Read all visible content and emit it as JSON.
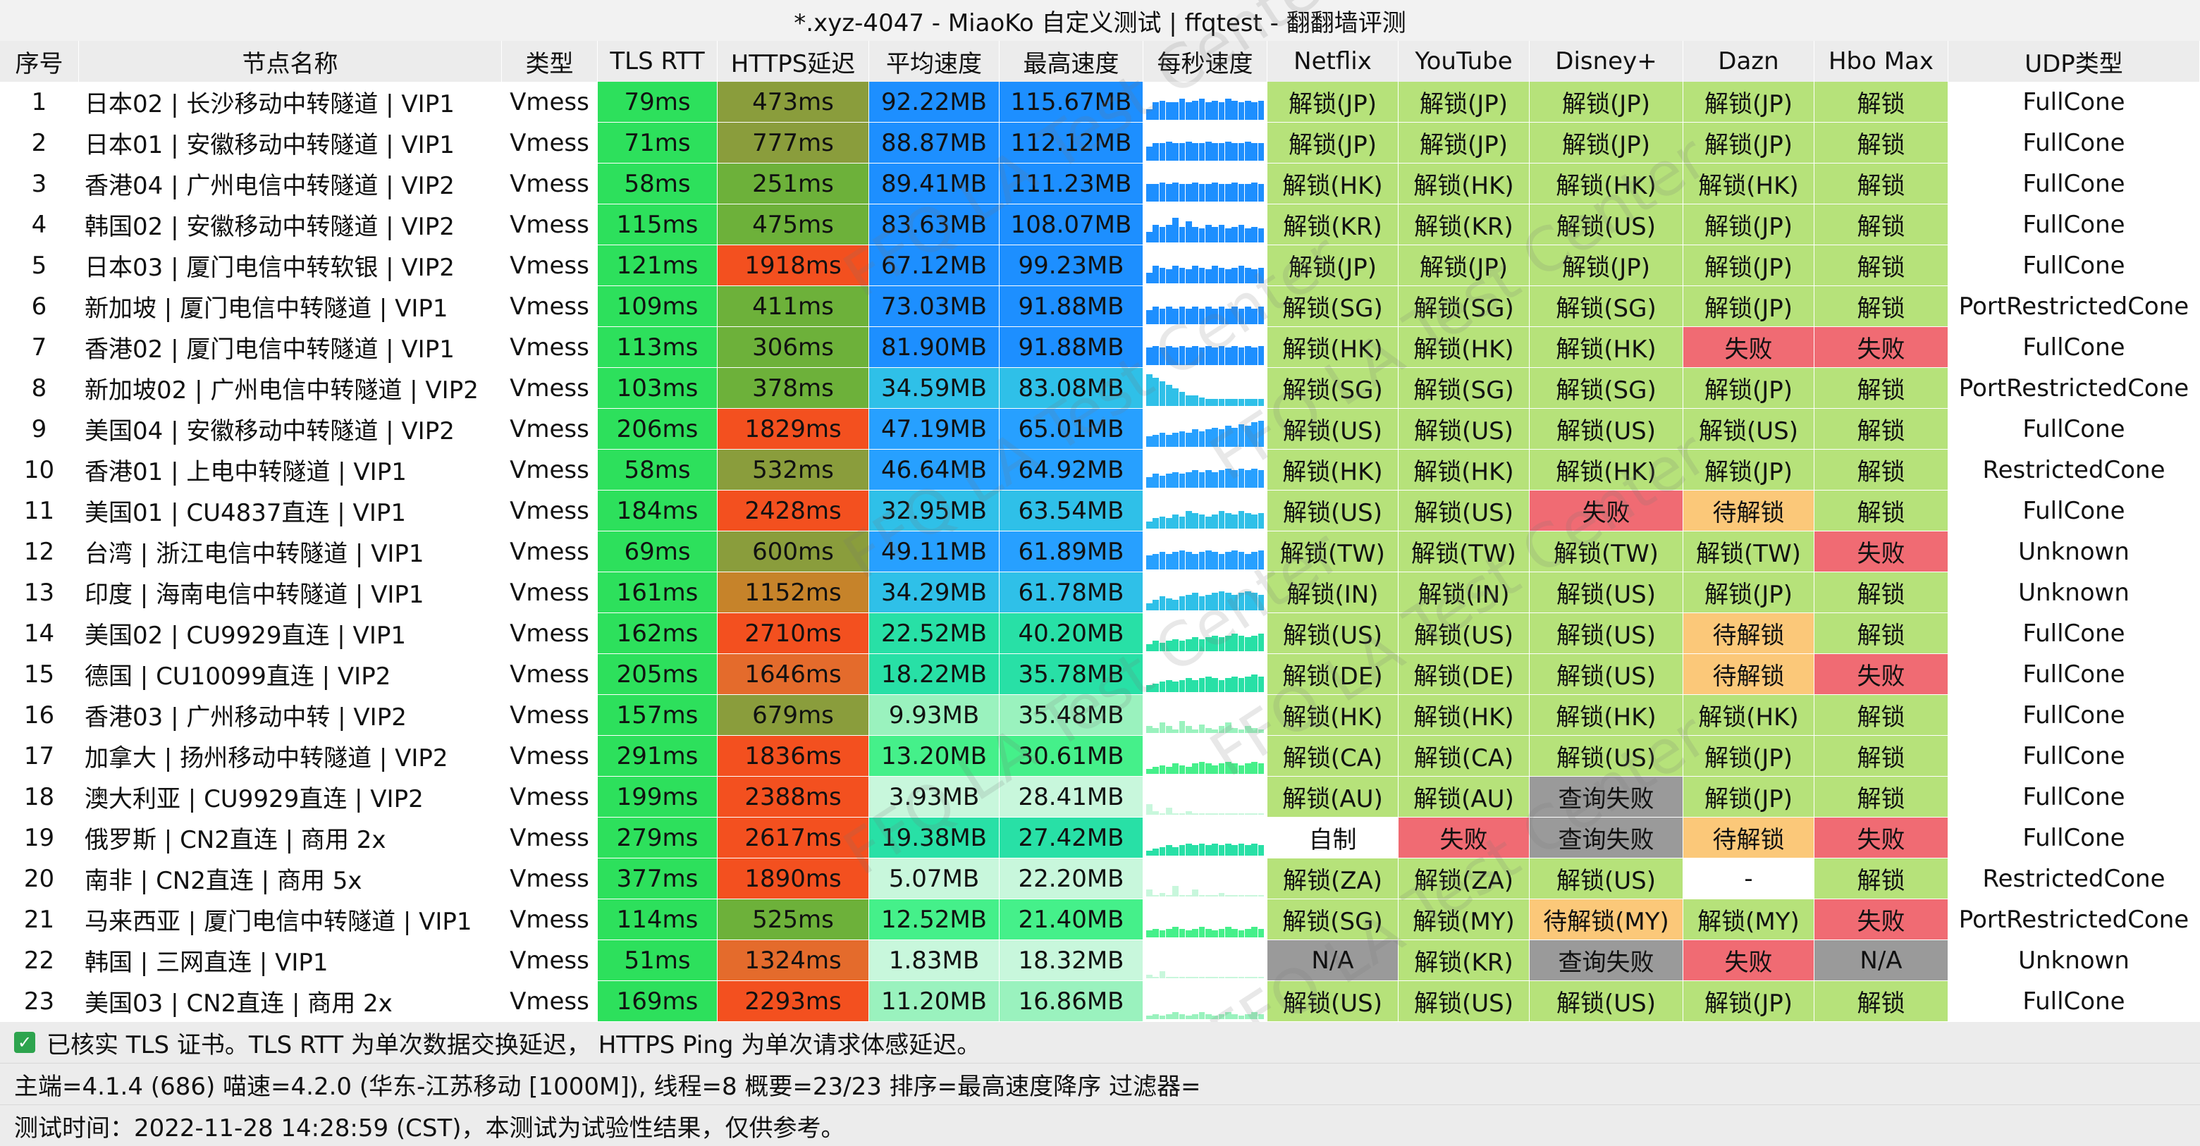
{
  "title": "*.xyz-4047 - MiaoKo 自定义测试 | ffqtest - 翻翻墙评测",
  "watermark": "FFQ LA Test Center",
  "headers": [
    "序号",
    "节点名称",
    "类型",
    "TLS RTT",
    "HTTPS延迟",
    "平均速度",
    "最高速度",
    "每秒速度",
    "Netflix",
    "YouTube",
    "Disney+",
    "Dazn",
    "Hbo Max",
    "UDP类型"
  ],
  "colors": {
    "rtt": "#2de05c",
    "ok": "#b6e27a",
    "fail": "#f06b73",
    "pending": "#fbc879",
    "query_fail": "#9a9a9a",
    "self": "#ffffff",
    "na": "#9a9a9a",
    "https_scale": [
      "#4cd964",
      "#6db13a",
      "#8a9d3c",
      "#c6832a",
      "#e46b2c",
      "#f3501f"
    ],
    "speed_scale": [
      "#1d8fff",
      "#27a0ff",
      "#2fc0e8",
      "#28e0a6",
      "#45f08a",
      "#9af2be",
      "#c8f7dc"
    ],
    "spark": "#1da2f2"
  },
  "rows": [
    {
      "idx": "1",
      "name": "日本02 | 长沙移动中转隧道 | VIP1",
      "type": "Vmess",
      "rtt": "79ms",
      "https": "473ms",
      "https_level": 2,
      "avg": "92.22MB",
      "max": "115.67MB",
      "speed_level": 0,
      "spark": [
        0.3,
        0.5,
        0.55,
        0.5,
        0.5,
        0.6,
        0.5,
        0.55,
        0.6,
        0.5,
        0.55,
        0.5,
        0.6,
        0.55,
        0.5,
        0.55,
        0.5,
        0.55
      ],
      "netflix": [
        "解锁(JP)",
        "ok"
      ],
      "youtube": [
        "解锁(JP)",
        "ok"
      ],
      "disney": [
        "解锁(JP)",
        "ok"
      ],
      "dazn": [
        "解锁(JP)",
        "ok"
      ],
      "hbo": [
        "解锁",
        "ok"
      ],
      "udp": "FullCone"
    },
    {
      "idx": "2",
      "name": "日本01 | 安徽移动中转隧道 | VIP1",
      "type": "Vmess",
      "rtt": "71ms",
      "https": "777ms",
      "https_level": 2,
      "avg": "88.87MB",
      "max": "112.12MB",
      "speed_level": 0,
      "spark": [
        0.4,
        0.5,
        0.5,
        0.55,
        0.5,
        0.5,
        0.55,
        0.5,
        0.5,
        0.55,
        0.5,
        0.5,
        0.55,
        0.5,
        0.5,
        0.55,
        0.5,
        0.5
      ],
      "netflix": [
        "解锁(JP)",
        "ok"
      ],
      "youtube": [
        "解锁(JP)",
        "ok"
      ],
      "disney": [
        "解锁(JP)",
        "ok"
      ],
      "dazn": [
        "解锁(JP)",
        "ok"
      ],
      "hbo": [
        "解锁",
        "ok"
      ],
      "udp": "FullCone"
    },
    {
      "idx": "3",
      "name": "香港04 | 广州电信中转隧道 | VIP2",
      "type": "Vmess",
      "rtt": "58ms",
      "https": "251ms",
      "https_level": 1,
      "avg": "89.41MB",
      "max": "111.23MB",
      "speed_level": 0,
      "spark": [
        0.5,
        0.5,
        0.55,
        0.5,
        0.55,
        0.5,
        0.5,
        0.55,
        0.5,
        0.5,
        0.55,
        0.5,
        0.5,
        0.55,
        0.5,
        0.5,
        0.55,
        0.5
      ],
      "netflix": [
        "解锁(HK)",
        "ok"
      ],
      "youtube": [
        "解锁(HK)",
        "ok"
      ],
      "disney": [
        "解锁(HK)",
        "ok"
      ],
      "dazn": [
        "解锁(HK)",
        "ok"
      ],
      "hbo": [
        "解锁",
        "ok"
      ],
      "udp": "FullCone"
    },
    {
      "idx": "4",
      "name": "韩国02 | 安徽移动中转隧道 | VIP2",
      "type": "Vmess",
      "rtt": "115ms",
      "https": "475ms",
      "https_level": 1,
      "avg": "83.63MB",
      "max": "108.07MB",
      "speed_level": 0,
      "spark": [
        0.3,
        0.5,
        0.45,
        0.5,
        0.7,
        0.45,
        0.6,
        0.45,
        0.4,
        0.5,
        0.45,
        0.5,
        0.4,
        0.45,
        0.5,
        0.4,
        0.45,
        0.4
      ],
      "netflix": [
        "解锁(KR)",
        "ok"
      ],
      "youtube": [
        "解锁(KR)",
        "ok"
      ],
      "disney": [
        "解锁(US)",
        "ok"
      ],
      "dazn": [
        "解锁(JP)",
        "ok"
      ],
      "hbo": [
        "解锁",
        "ok"
      ],
      "udp": "FullCone"
    },
    {
      "idx": "5",
      "name": "日本03 | 厦门电信中转软银 | VIP2",
      "type": "Vmess",
      "rtt": "121ms",
      "https": "1918ms",
      "https_level": 5,
      "avg": "67.12MB",
      "max": "99.23MB",
      "speed_level": 0,
      "spark": [
        0.3,
        0.5,
        0.45,
        0.4,
        0.5,
        0.45,
        0.4,
        0.5,
        0.45,
        0.4,
        0.5,
        0.45,
        0.4,
        0.45,
        0.5,
        0.45,
        0.4,
        0.45
      ],
      "netflix": [
        "解锁(JP)",
        "ok"
      ],
      "youtube": [
        "解锁(JP)",
        "ok"
      ],
      "disney": [
        "解锁(JP)",
        "ok"
      ],
      "dazn": [
        "解锁(JP)",
        "ok"
      ],
      "hbo": [
        "解锁",
        "ok"
      ],
      "udp": "FullCone"
    },
    {
      "idx": "6",
      "name": "新加坡 | 厦门电信中转隧道 | VIP1",
      "type": "Vmess",
      "rtt": "109ms",
      "https": "411ms",
      "https_level": 1,
      "avg": "73.03MB",
      "max": "91.88MB",
      "speed_level": 0,
      "spark": [
        0.4,
        0.5,
        0.45,
        0.5,
        0.45,
        0.5,
        0.45,
        0.5,
        0.45,
        0.5,
        0.45,
        0.5,
        0.45,
        0.5,
        0.45,
        0.5,
        0.45,
        0.5
      ],
      "netflix": [
        "解锁(SG)",
        "ok"
      ],
      "youtube": [
        "解锁(SG)",
        "ok"
      ],
      "disney": [
        "解锁(SG)",
        "ok"
      ],
      "dazn": [
        "解锁(JP)",
        "ok"
      ],
      "hbo": [
        "解锁",
        "ok"
      ],
      "udp": "PortRestrictedCone"
    },
    {
      "idx": "7",
      "name": "香港02 | 厦门电信中转隧道 | VIP1",
      "type": "Vmess",
      "rtt": "113ms",
      "https": "306ms",
      "https_level": 1,
      "avg": "81.90MB",
      "max": "91.88MB",
      "speed_level": 0,
      "spark": [
        0.5,
        0.55,
        0.5,
        0.55,
        0.5,
        0.55,
        0.5,
        0.55,
        0.5,
        0.55,
        0.5,
        0.55,
        0.5,
        0.55,
        0.5,
        0.55,
        0.5,
        0.55
      ],
      "netflix": [
        "解锁(HK)",
        "ok"
      ],
      "youtube": [
        "解锁(HK)",
        "ok"
      ],
      "disney": [
        "解锁(HK)",
        "ok"
      ],
      "dazn": [
        "失败",
        "fail"
      ],
      "hbo": [
        "失败",
        "fail"
      ],
      "udp": "FullCone"
    },
    {
      "idx": "8",
      "name": "新加坡02 | 广州电信中转隧道 | VIP2",
      "type": "Vmess",
      "rtt": "103ms",
      "https": "378ms",
      "https_level": 1,
      "avg": "34.59MB",
      "max": "83.08MB",
      "speed_level": 2,
      "spark": [
        0.9,
        0.8,
        0.7,
        0.6,
        0.5,
        0.4,
        0.3,
        0.3,
        0.25,
        0.2,
        0.2,
        0.2,
        0.2,
        0.2,
        0.2,
        0.2,
        0.2,
        0.2
      ],
      "netflix": [
        "解锁(SG)",
        "ok"
      ],
      "youtube": [
        "解锁(SG)",
        "ok"
      ],
      "disney": [
        "解锁(SG)",
        "ok"
      ],
      "dazn": [
        "解锁(JP)",
        "ok"
      ],
      "hbo": [
        "解锁",
        "ok"
      ],
      "udp": "PortRestrictedCone"
    },
    {
      "idx": "9",
      "name": "美国04 | 安徽移动中转隧道 | VIP2",
      "type": "Vmess",
      "rtt": "206ms",
      "https": "1829ms",
      "https_level": 5,
      "avg": "47.19MB",
      "max": "65.01MB",
      "speed_level": 1,
      "spark": [
        0.3,
        0.35,
        0.4,
        0.35,
        0.4,
        0.45,
        0.4,
        0.5,
        0.45,
        0.5,
        0.55,
        0.5,
        0.6,
        0.55,
        0.65,
        0.6,
        0.7,
        0.75
      ],
      "netflix": [
        "解锁(US)",
        "ok"
      ],
      "youtube": [
        "解锁(US)",
        "ok"
      ],
      "disney": [
        "解锁(US)",
        "ok"
      ],
      "dazn": [
        "解锁(US)",
        "ok"
      ],
      "hbo": [
        "解锁",
        "ok"
      ],
      "udp": "FullCone"
    },
    {
      "idx": "10",
      "name": "香港01 | 上电中转隧道 | VIP1",
      "type": "Vmess",
      "rtt": "58ms",
      "https": "532ms",
      "https_level": 2,
      "avg": "46.64MB",
      "max": "64.92MB",
      "speed_level": 1,
      "spark": [
        0.3,
        0.4,
        0.35,
        0.4,
        0.45,
        0.4,
        0.45,
        0.5,
        0.45,
        0.5,
        0.45,
        0.5,
        0.55,
        0.5,
        0.55,
        0.5,
        0.55,
        0.5
      ],
      "netflix": [
        "解锁(HK)",
        "ok"
      ],
      "youtube": [
        "解锁(HK)",
        "ok"
      ],
      "disney": [
        "解锁(HK)",
        "ok"
      ],
      "dazn": [
        "解锁(JP)",
        "ok"
      ],
      "hbo": [
        "解锁",
        "ok"
      ],
      "udp": "RestrictedCone"
    },
    {
      "idx": "11",
      "name": "美国01 | CU4837直连 | VIP1",
      "type": "Vmess",
      "rtt": "184ms",
      "https": "2428ms",
      "https_level": 5,
      "avg": "32.95MB",
      "max": "63.54MB",
      "speed_level": 2,
      "spark": [
        0.2,
        0.3,
        0.35,
        0.3,
        0.4,
        0.35,
        0.5,
        0.45,
        0.4,
        0.35,
        0.4,
        0.5,
        0.45,
        0.4,
        0.5,
        0.45,
        0.4,
        0.45
      ],
      "netflix": [
        "解锁(US)",
        "ok"
      ],
      "youtube": [
        "解锁(US)",
        "ok"
      ],
      "disney": [
        "失败",
        "fail"
      ],
      "dazn": [
        "待解锁",
        "pending"
      ],
      "hbo": [
        "解锁",
        "ok"
      ],
      "udp": "FullCone"
    },
    {
      "idx": "12",
      "name": "台湾 | 浙江电信中转隧道 | VIP1",
      "type": "Vmess",
      "rtt": "69ms",
      "https": "600ms",
      "https_level": 2,
      "avg": "49.11MB",
      "max": "61.89MB",
      "speed_level": 1,
      "spark": [
        0.4,
        0.45,
        0.5,
        0.45,
        0.5,
        0.55,
        0.5,
        0.45,
        0.5,
        0.55,
        0.5,
        0.45,
        0.5,
        0.55,
        0.5,
        0.45,
        0.5,
        0.55
      ],
      "netflix": [
        "解锁(TW)",
        "ok"
      ],
      "youtube": [
        "解锁(TW)",
        "ok"
      ],
      "disney": [
        "解锁(TW)",
        "ok"
      ],
      "dazn": [
        "解锁(TW)",
        "ok"
      ],
      "hbo": [
        "失败",
        "fail"
      ],
      "udp": "Unknown"
    },
    {
      "idx": "13",
      "name": "印度 | 海南电信中转隧道 | VIP1",
      "type": "Vmess",
      "rtt": "161ms",
      "https": "1152ms",
      "https_level": 3,
      "avg": "34.29MB",
      "max": "61.78MB",
      "speed_level": 2,
      "spark": [
        0.2,
        0.3,
        0.4,
        0.35,
        0.3,
        0.4,
        0.45,
        0.5,
        0.4,
        0.45,
        0.5,
        0.55,
        0.5,
        0.45,
        0.5,
        0.55,
        0.5,
        0.45
      ],
      "netflix": [
        "解锁(IN)",
        "ok"
      ],
      "youtube": [
        "解锁(IN)",
        "ok"
      ],
      "disney": [
        "解锁(US)",
        "ok"
      ],
      "dazn": [
        "解锁(JP)",
        "ok"
      ],
      "hbo": [
        "解锁",
        "ok"
      ],
      "udp": "Unknown"
    },
    {
      "idx": "14",
      "name": "美国02 | CU9929直连 | VIP1",
      "type": "Vmess",
      "rtt": "162ms",
      "https": "2710ms",
      "https_level": 5,
      "avg": "22.52MB",
      "max": "40.20MB",
      "speed_level": 3,
      "spark": [
        0.2,
        0.3,
        0.25,
        0.3,
        0.35,
        0.3,
        0.35,
        0.4,
        0.35,
        0.4,
        0.45,
        0.4,
        0.45,
        0.5,
        0.45,
        0.4,
        0.45,
        0.5
      ],
      "netflix": [
        "解锁(US)",
        "ok"
      ],
      "youtube": [
        "解锁(US)",
        "ok"
      ],
      "disney": [
        "解锁(US)",
        "ok"
      ],
      "dazn": [
        "待解锁",
        "pending"
      ],
      "hbo": [
        "解锁",
        "ok"
      ],
      "udp": "FullCone"
    },
    {
      "idx": "15",
      "name": "德国 | CU10099直连 | VIP2",
      "type": "Vmess",
      "rtt": "205ms",
      "https": "1646ms",
      "https_level": 4,
      "avg": "18.22MB",
      "max": "35.78MB",
      "speed_level": 3,
      "spark": [
        0.2,
        0.25,
        0.3,
        0.35,
        0.3,
        0.35,
        0.4,
        0.35,
        0.4,
        0.45,
        0.4,
        0.35,
        0.4,
        0.45,
        0.4,
        0.45,
        0.5,
        0.45
      ],
      "netflix": [
        "解锁(DE)",
        "ok"
      ],
      "youtube": [
        "解锁(DE)",
        "ok"
      ],
      "disney": [
        "解锁(US)",
        "ok"
      ],
      "dazn": [
        "待解锁",
        "pending"
      ],
      "hbo": [
        "失败",
        "fail"
      ],
      "udp": "FullCone"
    },
    {
      "idx": "16",
      "name": "香港03 | 广州移动中转 | VIP2",
      "type": "Vmess",
      "rtt": "157ms",
      "https": "679ms",
      "https_level": 2,
      "avg": "9.93MB",
      "max": "35.48MB",
      "speed_level": 5,
      "spark": [
        0.2,
        0.15,
        0.3,
        0.2,
        0.1,
        0.35,
        0.2,
        0.1,
        0.25,
        0.15,
        0.1,
        0.2,
        0.3,
        0.15,
        0.1,
        0.2,
        0.15,
        0.1
      ],
      "netflix": [
        "解锁(HK)",
        "ok"
      ],
      "youtube": [
        "解锁(HK)",
        "ok"
      ],
      "disney": [
        "解锁(HK)",
        "ok"
      ],
      "dazn": [
        "解锁(HK)",
        "ok"
      ],
      "hbo": [
        "解锁",
        "ok"
      ],
      "udp": "FullCone"
    },
    {
      "idx": "17",
      "name": "加拿大 | 扬州移动中转隧道 | VIP2",
      "type": "Vmess",
      "rtt": "291ms",
      "https": "1836ms",
      "https_level": 5,
      "avg": "13.20MB",
      "max": "30.61MB",
      "speed_level": 4,
      "spark": [
        0.15,
        0.2,
        0.25,
        0.2,
        0.3,
        0.25,
        0.2,
        0.3,
        0.35,
        0.3,
        0.25,
        0.3,
        0.35,
        0.3,
        0.25,
        0.3,
        0.35,
        0.3
      ],
      "netflix": [
        "解锁(CA)",
        "ok"
      ],
      "youtube": [
        "解锁(CA)",
        "ok"
      ],
      "disney": [
        "解锁(US)",
        "ok"
      ],
      "dazn": [
        "解锁(JP)",
        "ok"
      ],
      "hbo": [
        "解锁",
        "ok"
      ],
      "udp": "FullCone"
    },
    {
      "idx": "18",
      "name": "澳大利亚 | CU9929直连 | VIP2",
      "type": "Vmess",
      "rtt": "199ms",
      "https": "2388ms",
      "https_level": 5,
      "avg": "3.93MB",
      "max": "28.41MB",
      "speed_level": 6,
      "spark": [
        0.3,
        0.1,
        0.05,
        0.2,
        0.05,
        0.05,
        0.1,
        0.05,
        0.05,
        0.05,
        0.05,
        0.05,
        0.05,
        0.05,
        0.05,
        0.05,
        0.05,
        0.05
      ],
      "netflix": [
        "解锁(AU)",
        "ok"
      ],
      "youtube": [
        "解锁(AU)",
        "ok"
      ],
      "disney": [
        "查询失败",
        "query_fail"
      ],
      "dazn": [
        "解锁(JP)",
        "ok"
      ],
      "hbo": [
        "解锁",
        "ok"
      ],
      "udp": "FullCone"
    },
    {
      "idx": "19",
      "name": "俄罗斯 | CN2直连 | 商用 2x",
      "type": "Vmess",
      "rtt": "279ms",
      "https": "2617ms",
      "https_level": 5,
      "avg": "19.38MB",
      "max": "27.42MB",
      "speed_level": 3,
      "spark": [
        0.15,
        0.2,
        0.25,
        0.3,
        0.25,
        0.3,
        0.35,
        0.3,
        0.35,
        0.3,
        0.35,
        0.3,
        0.35,
        0.3,
        0.35,
        0.3,
        0.35,
        0.3
      ],
      "netflix": [
        "自制",
        "self"
      ],
      "youtube": [
        "失败",
        "fail"
      ],
      "disney": [
        "查询失败",
        "query_fail"
      ],
      "dazn": [
        "待解锁",
        "pending"
      ],
      "hbo": [
        "失败",
        "fail"
      ],
      "udp": "FullCone"
    },
    {
      "idx": "20",
      "name": "南非 | CN2直连 | 商用 5x",
      "type": "Vmess",
      "rtt": "377ms",
      "https": "1890ms",
      "https_level": 5,
      "avg": "5.07MB",
      "max": "22.20MB",
      "speed_level": 6,
      "spark": [
        0.2,
        0.05,
        0.1,
        0.05,
        0.3,
        0.05,
        0.05,
        0.2,
        0.05,
        0.05,
        0.05,
        0.1,
        0.05,
        0.05,
        0.05,
        0.05,
        0.05,
        0.05
      ],
      "netflix": [
        "解锁(ZA)",
        "ok"
      ],
      "youtube": [
        "解锁(ZA)",
        "ok"
      ],
      "disney": [
        "解锁(US)",
        "ok"
      ],
      "dazn": [
        "-",
        "self"
      ],
      "hbo": [
        "解锁",
        "ok"
      ],
      "udp": "RestrictedCone"
    },
    {
      "idx": "21",
      "name": "马来西亚 | 厦门电信中转隧道 | VIP1",
      "type": "Vmess",
      "rtt": "114ms",
      "https": "525ms",
      "https_level": 1,
      "avg": "12.52MB",
      "max": "21.40MB",
      "speed_level": 4,
      "spark": [
        0.2,
        0.25,
        0.2,
        0.25,
        0.3,
        0.25,
        0.2,
        0.25,
        0.3,
        0.25,
        0.2,
        0.25,
        0.3,
        0.25,
        0.2,
        0.25,
        0.3,
        0.25
      ],
      "netflix": [
        "解锁(SG)",
        "ok"
      ],
      "youtube": [
        "解锁(MY)",
        "ok"
      ],
      "disney": [
        "待解锁(MY)",
        "pending"
      ],
      "dazn": [
        "解锁(MY)",
        "ok"
      ],
      "hbo": [
        "失败",
        "fail"
      ],
      "udp": "PortRestrictedCone"
    },
    {
      "idx": "22",
      "name": "韩国 | 三网直连 | VIP1",
      "type": "Vmess",
      "rtt": "51ms",
      "https": "1324ms",
      "https_level": 4,
      "avg": "1.83MB",
      "max": "18.32MB",
      "speed_level": 6,
      "spark": [
        0.1,
        0.05,
        0.2,
        0.05,
        0.05,
        0.05,
        0.05,
        0.05,
        0.05,
        0.05,
        0.05,
        0.05,
        0.05,
        0.05,
        0.05,
        0.05,
        0.05,
        0.05
      ],
      "netflix": [
        "N/A",
        "na"
      ],
      "youtube": [
        "解锁(KR)",
        "ok"
      ],
      "disney": [
        "查询失败",
        "query_fail"
      ],
      "dazn": [
        "失败",
        "fail"
      ],
      "hbo": [
        "N/A",
        "na"
      ],
      "udp": "Unknown"
    },
    {
      "idx": "23",
      "name": "美国03 | CN2直连 | 商用 2x",
      "type": "Vmess",
      "rtt": "169ms",
      "https": "2293ms",
      "https_level": 5,
      "avg": "11.20MB",
      "max": "16.86MB",
      "speed_level": 5,
      "spark": [
        0.1,
        0.15,
        0.1,
        0.15,
        0.2,
        0.15,
        0.1,
        0.15,
        0.2,
        0.15,
        0.1,
        0.15,
        0.2,
        0.15,
        0.1,
        0.15,
        0.2,
        0.15
      ],
      "netflix": [
        "解锁(US)",
        "ok"
      ],
      "youtube": [
        "解锁(US)",
        "ok"
      ],
      "disney": [
        "解锁(US)",
        "ok"
      ],
      "dazn": [
        "解锁(JP)",
        "ok"
      ],
      "hbo": [
        "解锁",
        "ok"
      ],
      "udp": "FullCone"
    }
  ],
  "footer": {
    "line1": "已核实 TLS 证书。TLS RTT 为单次数据交换延迟， HTTPS Ping 为单次请求体感延迟。",
    "line2": "主端=4.1.4 (686) 喵速=4.2.0 (华东-江苏移动 [1000M]), 线程=8 概要=23/23 排序=最高速度降序 过滤器=",
    "line3": "测试时间：2022-11-28 14:28:59 (CST)，本测试为试验性结果，仅供参考。"
  }
}
